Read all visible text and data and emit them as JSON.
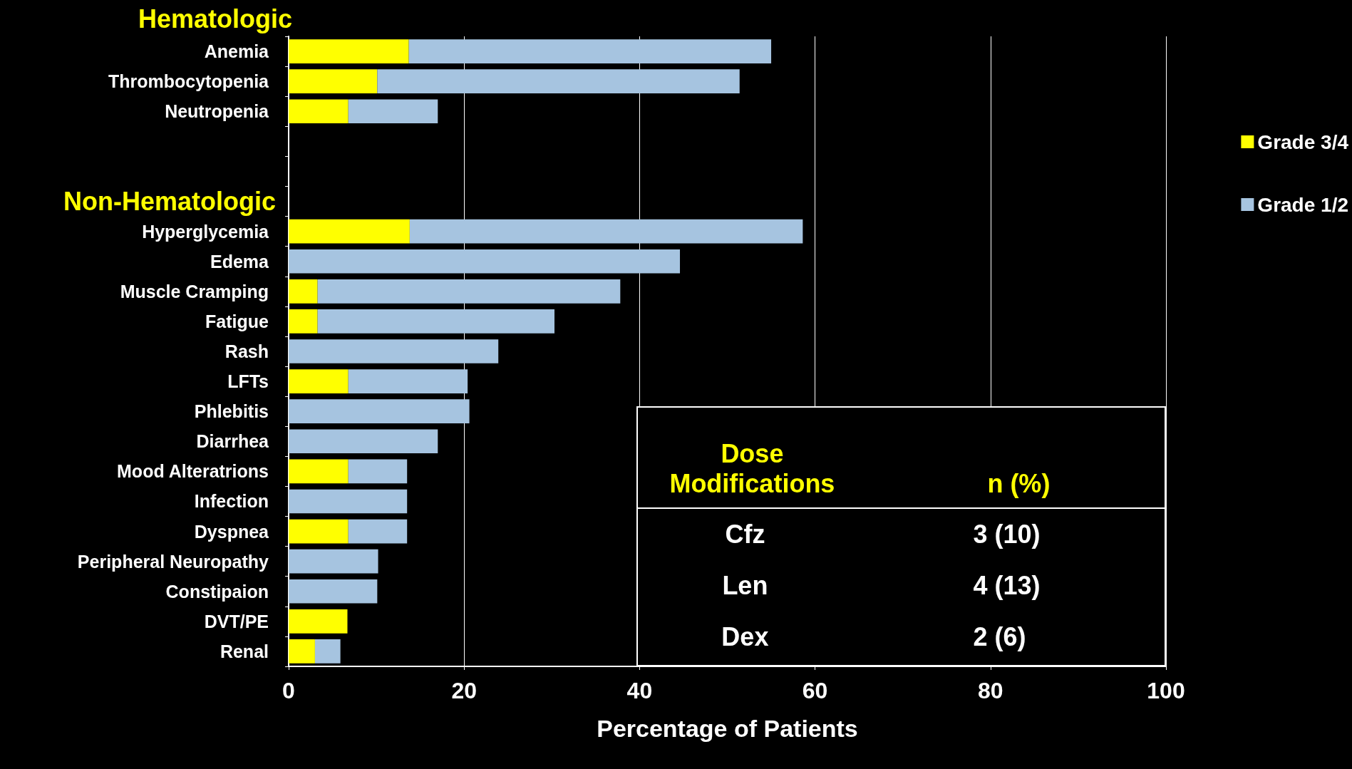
{
  "chart_data": {
    "type": "bar",
    "orientation": "horizontal",
    "stacked": true,
    "categories": [
      "Anemia",
      "Thrombocytopenia",
      "Neutropenia",
      null,
      null,
      null,
      "Hyperglycemia",
      "Edema",
      "Muscle Cramping",
      "Fatigue",
      "Rash",
      "LFTs",
      "Phlebitis",
      "Diarrhea",
      "Mood Alteratrions",
      "Infection",
      "Dyspnea",
      "Peripheral Neuropathy",
      "Constipaion",
      "DVT/PE",
      "Renal"
    ],
    "series": [
      {
        "name": "Grade 3/4",
        "color": "#ffff00",
        "values": [
          13.7,
          10.1,
          6.8,
          null,
          null,
          null,
          13.8,
          null,
          3.3,
          3.3,
          null,
          6.8,
          null,
          null,
          6.8,
          null,
          6.8,
          null,
          null,
          6.7,
          3.0
        ]
      },
      {
        "name": "Grade 1/2",
        "color": "#a6c4e0",
        "values": [
          41.3,
          41.3,
          10.2,
          null,
          null,
          null,
          44.8,
          44.6,
          34.5,
          27.0,
          23.9,
          13.6,
          20.6,
          17.0,
          6.7,
          13.5,
          6.7,
          10.2,
          10.1,
          null,
          2.9
        ]
      }
    ],
    "xlim": [
      0,
      100
    ],
    "xticks": [
      0,
      20,
      40,
      60,
      80,
      100
    ],
    "xlabel": "Percentage of Patients",
    "grid": "x",
    "legend": "right",
    "annotations": [
      "Hematologic",
      "Non-Hematologic",
      "Dose Modifications",
      "n (%)",
      "Cfz",
      "3 (10)",
      "Len",
      "4 (13)",
      "Dex",
      "2 (6)"
    ]
  }
}
